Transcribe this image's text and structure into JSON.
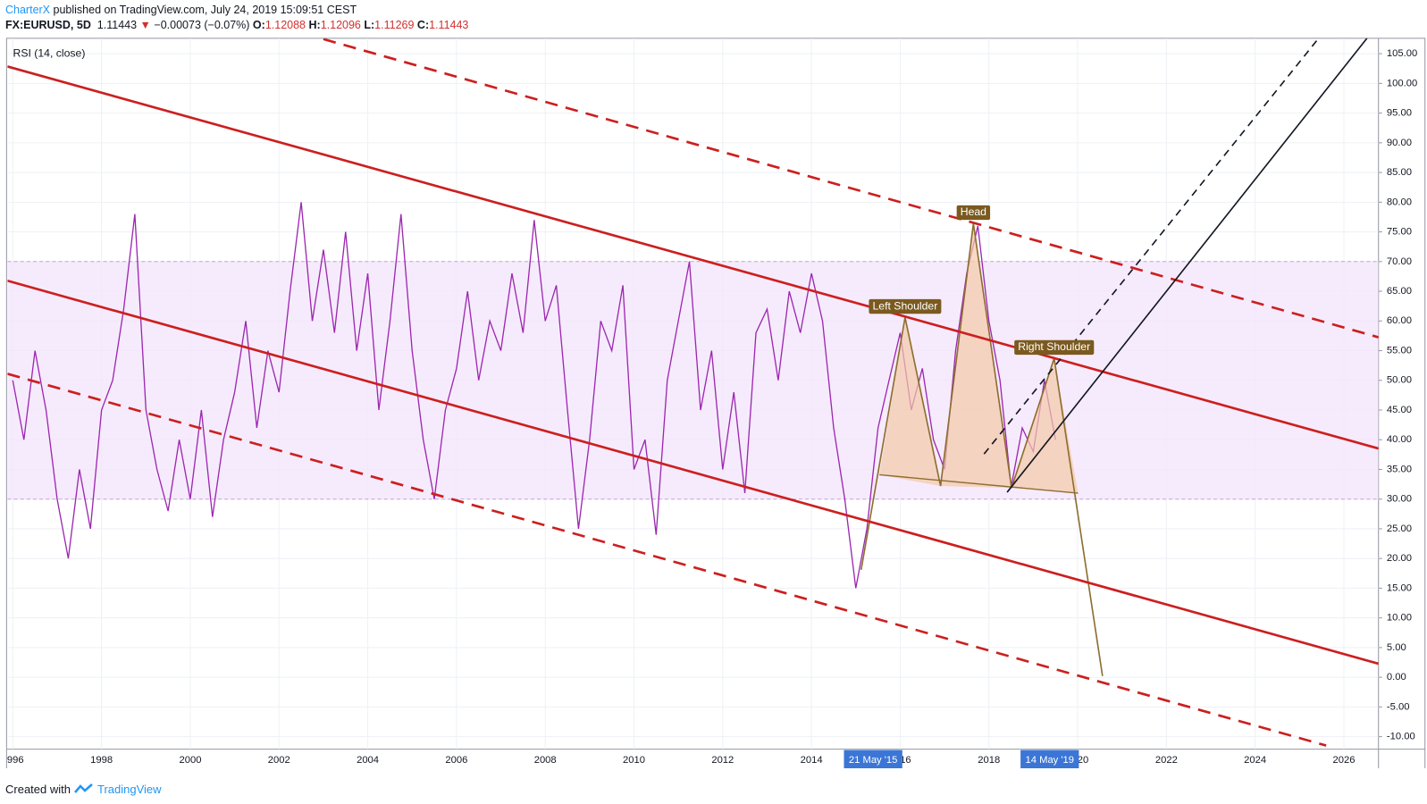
{
  "header": {
    "author": "CharterX",
    "published": " published on TradingView.com, July 24, 2019 15:09:51 CEST",
    "symbol": "FX:EURUSD, 5D",
    "last": "1.11443",
    "arrow": "▼",
    "change": "−0.00073 (−0.07%)",
    "open_label": "O:",
    "open": "1.12088",
    "high_label": "H:",
    "high": "1.12096",
    "low_label": "L:",
    "low": "1.11269",
    "close_label": "C:",
    "close": "1.11443"
  },
  "footer": {
    "created": "Created with",
    "brand": "TradingView"
  },
  "chart_data": {
    "type": "line",
    "indicator_label": "RSI (14, close)",
    "xlim": [
      1995.88,
      2026.78
    ],
    "ylim": [
      -12.1,
      107.6
    ],
    "xticks": [
      {
        "value": 1996,
        "label": "996"
      },
      1998,
      2000,
      2002,
      2004,
      2006,
      2008,
      2010,
      2012,
      2014,
      {
        "value": 2016,
        "label": "16"
      },
      2018,
      {
        "value": 2020,
        "label": "20"
      },
      2022,
      2024,
      2026
    ],
    "yticks": [
      {
        "value": 105,
        "label": "105.00"
      },
      {
        "value": 100,
        "label": "100.00"
      },
      {
        "value": 95,
        "label": "95.00"
      },
      {
        "value": 90,
        "label": "90.00"
      },
      {
        "value": 85,
        "label": "85.00"
      },
      {
        "value": 80,
        "label": "80.00"
      },
      {
        "value": 75,
        "label": "75.00"
      },
      {
        "value": 70,
        "label": "70.00"
      },
      {
        "value": 65,
        "label": "65.00"
      },
      {
        "value": 60,
        "label": "60.00"
      },
      {
        "value": 55,
        "label": "55.00"
      },
      {
        "value": 50,
        "label": "50.00"
      },
      {
        "value": 45,
        "label": "45.00"
      },
      {
        "value": 40,
        "label": "40.00"
      },
      {
        "value": 35,
        "label": "35.00"
      },
      {
        "value": 30,
        "label": "30.00"
      },
      {
        "value": 25,
        "label": "25.00"
      },
      {
        "value": 20,
        "label": "20.00"
      },
      {
        "value": 15,
        "label": "15.00"
      },
      {
        "value": 10,
        "label": "10.00"
      },
      {
        "value": 5,
        "label": "5.00"
      },
      {
        "value": 0,
        "label": "0.00"
      },
      {
        "value": -5,
        "label": "-5.00"
      },
      {
        "value": -10,
        "label": "-10.00"
      }
    ],
    "grid": true,
    "band": {
      "from": 30,
      "to": 70,
      "color": "#f3e4fb"
    },
    "date_tags": [
      {
        "value": 2015.39,
        "label": "21 May '15"
      },
      {
        "value": 2019.37,
        "label": "14 May '19"
      }
    ],
    "x": [
      1996.0,
      1996.25,
      1996.5,
      1996.75,
      1997.0,
      1997.25,
      1997.5,
      1997.75,
      1998.0,
      1998.25,
      1998.5,
      1998.75,
      1999.0,
      1999.25,
      1999.5,
      1999.75,
      2000.0,
      2000.25,
      2000.5,
      2000.75,
      2001.0,
      2001.25,
      2001.5,
      2001.75,
      2002.0,
      2002.25,
      2002.5,
      2002.75,
      2003.0,
      2003.25,
      2003.5,
      2003.75,
      2004.0,
      2004.25,
      2004.5,
      2004.75,
      2005.0,
      2005.25,
      2005.5,
      2005.75,
      2006.0,
      2006.25,
      2006.5,
      2006.75,
      2007.0,
      2007.25,
      2007.5,
      2007.75,
      2008.0,
      2008.25,
      2008.5,
      2008.75,
      2009.0,
      2009.25,
      2009.5,
      2009.75,
      2010.0,
      2010.25,
      2010.5,
      2010.75,
      2011.0,
      2011.25,
      2011.5,
      2011.75,
      2012.0,
      2012.25,
      2012.5,
      2012.75,
      2013.0,
      2013.25,
      2013.5,
      2013.75,
      2014.0,
      2014.25,
      2014.5,
      2014.75,
      2015.0,
      2015.25,
      2015.5,
      2015.75,
      2016.0,
      2016.25,
      2016.5,
      2016.75,
      2017.0,
      2017.25,
      2017.5,
      2017.75,
      2018.0,
      2018.25,
      2018.5,
      2018.75,
      2019.0,
      2019.25,
      2019.5
    ],
    "series": [
      {
        "name": "RSI (14, close)",
        "color": "#9c27b0",
        "values": [
          50,
          40,
          55,
          45,
          30,
          20,
          35,
          25,
          45,
          50,
          62,
          78,
          45,
          35,
          28,
          40,
          30,
          45,
          27,
          40,
          48,
          60,
          42,
          55,
          48,
          65,
          80,
          60,
          72,
          58,
          75,
          55,
          68,
          45,
          60,
          78,
          55,
          40,
          30,
          45,
          52,
          65,
          50,
          60,
          55,
          68,
          58,
          77,
          60,
          66,
          45,
          25,
          40,
          60,
          55,
          66,
          35,
          40,
          24,
          50,
          60,
          70,
          45,
          55,
          35,
          48,
          31,
          58,
          62,
          50,
          65,
          58,
          68,
          60,
          42,
          30,
          15,
          25,
          42,
          50,
          58,
          45,
          52,
          40,
          35,
          55,
          68,
          76,
          60,
          50,
          32,
          42,
          38,
          50,
          40
        ]
      }
    ],
    "drawings": [
      {
        "color": "#cc1f1f",
        "dashed": false,
        "x": [
          1995.88,
          2026.78
        ],
        "y": [
          102.85,
          38.52
        ]
      },
      {
        "color": "#cc1f1f",
        "dashed": false,
        "x": [
          1995.88,
          2026.78
        ],
        "y": [
          66.77,
          2.28
        ]
      },
      {
        "color": "#cc1f1f",
        "dashed": true,
        "x": [
          2003.0,
          2026.78
        ],
        "y": [
          107.46,
          57.25
        ]
      },
      {
        "color": "#cc1f1f",
        "dashed": true,
        "x": [
          1995.88,
          2025.6
        ],
        "y": [
          51.1,
          -11.5
        ]
      },
      {
        "color": "#131722",
        "dashed": false,
        "x": [
          2018.41,
          2026.52
        ],
        "y": [
          31.15,
          107.6
        ]
      },
      {
        "color": "#131722",
        "dashed": true,
        "x": [
          2017.89,
          2025.43
        ],
        "y": [
          37.6,
          107.6
        ]
      }
    ],
    "pattern": {
      "color": "#8d6e2f",
      "fill": "#f5c9a8",
      "points": [
        {
          "x": 2015.12,
          "y": 18.1
        },
        {
          "x": 2016.11,
          "y": 60.6,
          "label": "Left Shoulder"
        },
        {
          "x": 2016.91,
          "y": 32.2
        },
        {
          "x": 2017.65,
          "y": 76.4,
          "label": "Head"
        },
        {
          "x": 2018.51,
          "y": 31.9
        },
        {
          "x": 2019.47,
          "y": 53.7,
          "label": "Right Shoulder"
        },
        {
          "x": 2020.56,
          "y": 0.2
        }
      ],
      "neckline": {
        "x": [
          2015.53,
          2020.01
        ],
        "y": [
          34.1,
          31.0
        ]
      }
    }
  }
}
